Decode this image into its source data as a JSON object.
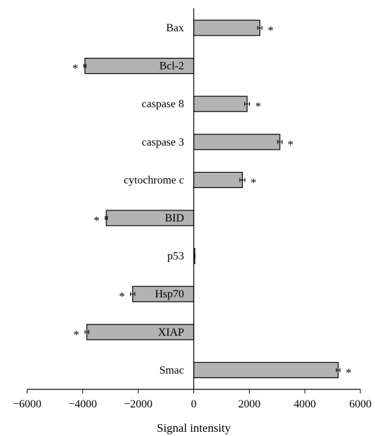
{
  "chart_data": {
    "type": "bar",
    "orientation": "horizontal",
    "categories": [
      "Bax",
      "Bcl-2",
      "caspase 8",
      "caspase 3",
      "cytochrome c",
      "BID",
      "p53",
      "Hsp70",
      "XIAP",
      "Smac"
    ],
    "values": [
      2380,
      -3920,
      1920,
      3100,
      1750,
      -3150,
      30,
      -2200,
      -3850,
      5200
    ],
    "errors": [
      80,
      40,
      90,
      80,
      90,
      40,
      10,
      80,
      70,
      70
    ],
    "significance": [
      "*",
      "*",
      "*",
      "*",
      "*",
      "*",
      "",
      "*",
      "*",
      "*"
    ],
    "xlabel": "Signal intensity",
    "ylabel": "",
    "xlim": [
      -6000,
      6000
    ],
    "xticks": [
      -6000,
      -4000,
      -2000,
      0,
      2000,
      4000,
      6000
    ],
    "xtick_labels": [
      "−6000",
      "−4000",
      "−2000",
      "0",
      "2000",
      "4000",
      "6000"
    ],
    "bar_color": "#b3b3b3",
    "grid": false,
    "legend": "none"
  }
}
